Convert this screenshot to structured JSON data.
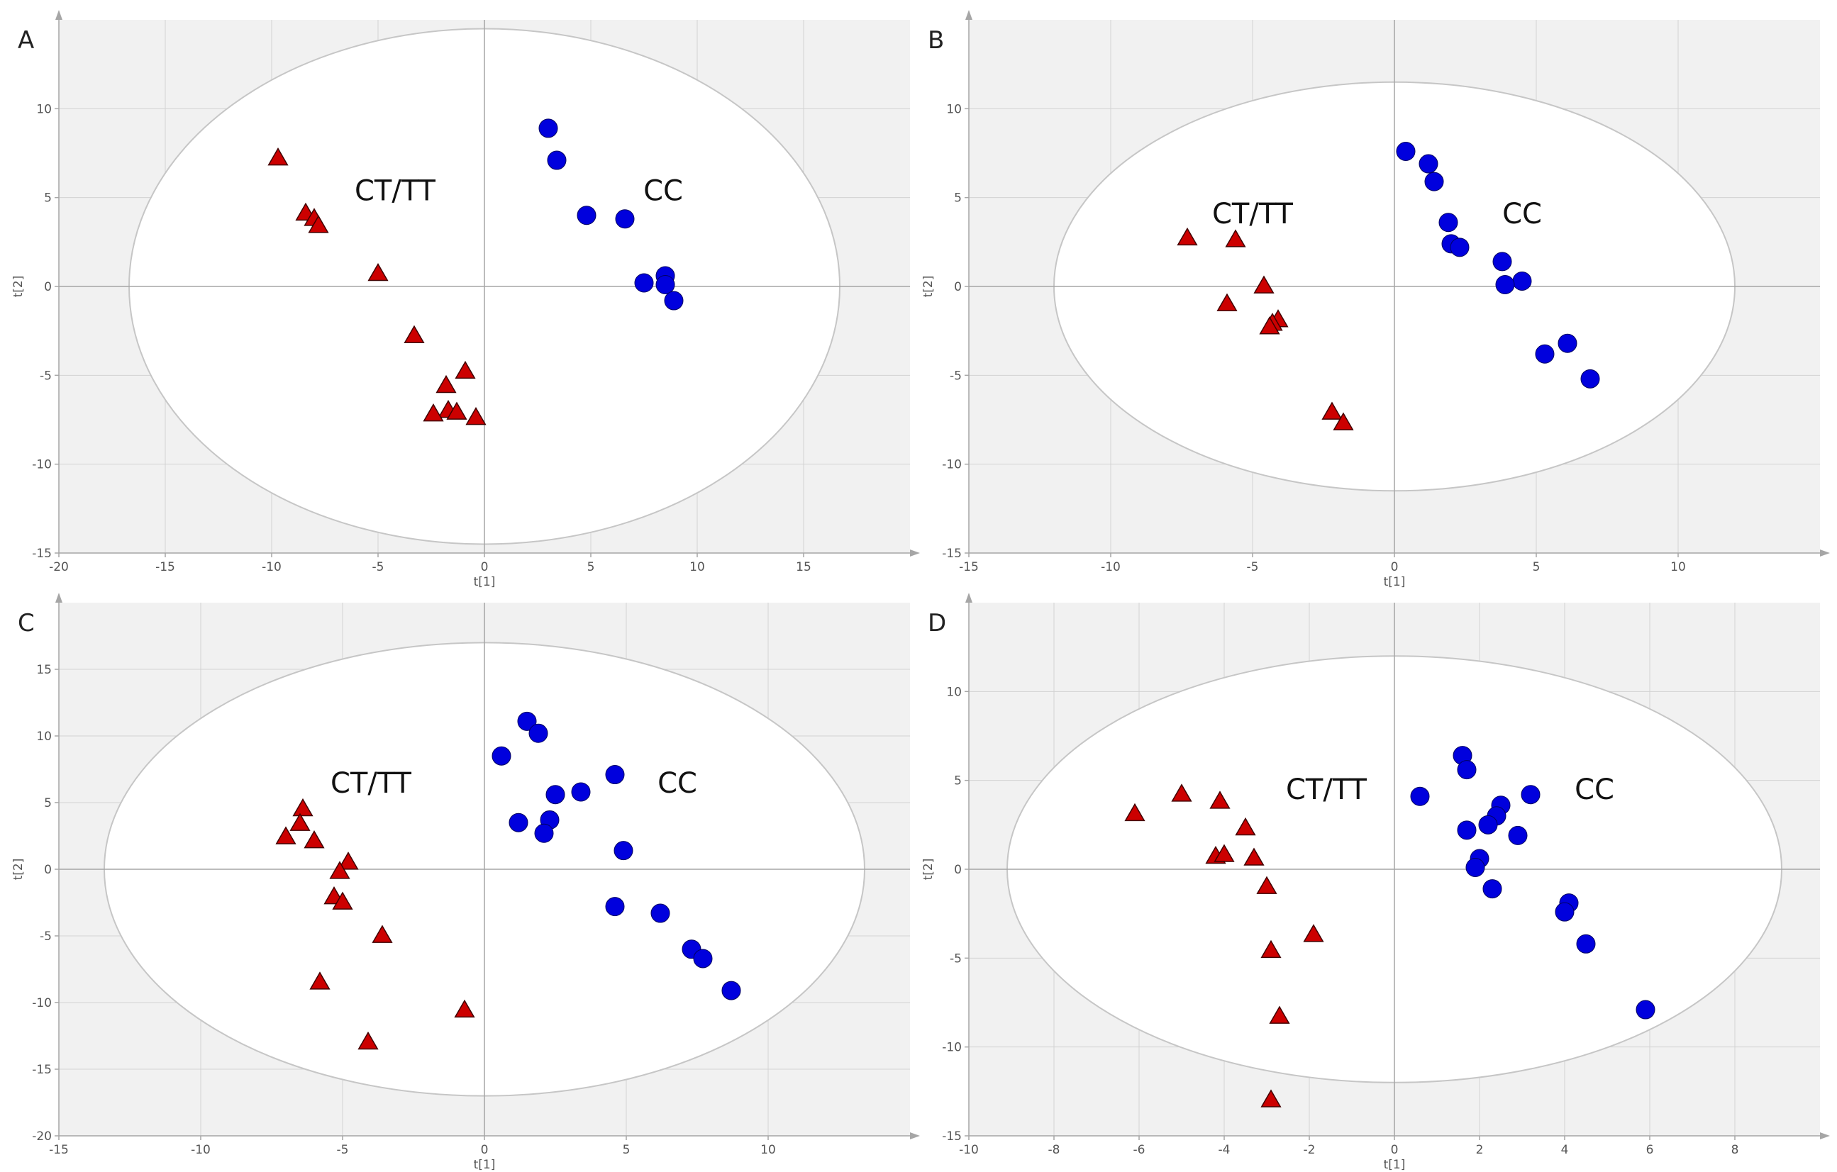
{
  "colors": {
    "background": "#f1f1f1",
    "grid": "#d2d2d2",
    "axis": "#a6a6a6",
    "ellipse_fill": "#ffffff",
    "ellipse_stroke": "#c6c6c6",
    "ct_tt": "#cc0000",
    "cc": "#0000dd"
  },
  "chart_data": [
    {
      "type": "scatter",
      "panel": "A",
      "xlabel": "t[1]",
      "ylabel": "t[2]",
      "xlim": [
        -20,
        20
      ],
      "ylim": [
        -15,
        15
      ],
      "xticks": [
        -20,
        -15,
        -10,
        -5,
        0,
        5,
        10,
        15
      ],
      "yticks": [
        -15,
        -10,
        -5,
        0,
        5,
        10
      ],
      "grid": true,
      "ellipse": {
        "cx": 0,
        "cy": 0,
        "rx": 16.7,
        "ry": 14.5
      },
      "labels": [
        {
          "text": "CT/TT",
          "x": -4.2,
          "y": 5.4
        },
        {
          "text": "CC",
          "x": 8.4,
          "y": 5.4
        }
      ],
      "series": [
        {
          "name": "CT/TT",
          "marker": "triangle",
          "color": "#cc0000",
          "points": [
            [
              -9.7,
              7.2
            ],
            [
              -8.4,
              4.1
            ],
            [
              -8.0,
              3.8
            ],
            [
              -7.8,
              3.4
            ],
            [
              -5.0,
              0.7
            ],
            [
              -3.3,
              -2.8
            ],
            [
              -0.9,
              -4.8
            ],
            [
              -1.8,
              -5.6
            ],
            [
              -1.7,
              -7.0
            ],
            [
              -2.4,
              -7.2
            ],
            [
              -1.3,
              -7.1
            ],
            [
              -0.4,
              -7.4
            ]
          ]
        },
        {
          "name": "CC",
          "marker": "circle",
          "color": "#0000dd",
          "points": [
            [
              3.0,
              8.9
            ],
            [
              3.4,
              7.1
            ],
            [
              4.8,
              4.0
            ],
            [
              6.6,
              3.8
            ],
            [
              7.5,
              0.2
            ],
            [
              8.5,
              0.6
            ],
            [
              8.5,
              0.1
            ],
            [
              8.9,
              -0.8
            ]
          ]
        }
      ]
    },
    {
      "type": "scatter",
      "panel": "B",
      "xlabel": "t[1]",
      "ylabel": "t[2]",
      "xlim": [
        -15,
        15
      ],
      "ylim": [
        -15,
        15
      ],
      "xticks": [
        -15,
        -10,
        -5,
        0,
        5,
        10
      ],
      "yticks": [
        -15,
        -10,
        -5,
        0,
        5,
        10
      ],
      "grid": true,
      "ellipse": {
        "cx": 0,
        "cy": 0,
        "rx": 12.0,
        "ry": 11.5
      },
      "labels": [
        {
          "text": "CT/TT",
          "x": -5.0,
          "y": 4.1
        },
        {
          "text": "CC",
          "x": 4.5,
          "y": 4.1
        }
      ],
      "series": [
        {
          "name": "CT/TT",
          "marker": "triangle",
          "color": "#cc0000",
          "points": [
            [
              -7.3,
              2.7
            ],
            [
              -5.6,
              2.6
            ],
            [
              -4.6,
              0.0
            ],
            [
              -5.9,
              -1.0
            ],
            [
              -4.1,
              -1.9
            ],
            [
              -4.3,
              -2.1
            ],
            [
              -4.4,
              -2.3
            ],
            [
              -2.2,
              -7.1
            ],
            [
              -1.8,
              -7.7
            ]
          ]
        },
        {
          "name": "CC",
          "marker": "circle",
          "color": "#0000dd",
          "points": [
            [
              0.4,
              7.6
            ],
            [
              1.2,
              6.9
            ],
            [
              1.4,
              5.9
            ],
            [
              1.9,
              3.6
            ],
            [
              2.0,
              2.4
            ],
            [
              2.3,
              2.2
            ],
            [
              3.8,
              1.4
            ],
            [
              4.5,
              0.3
            ],
            [
              3.9,
              0.1
            ],
            [
              6.1,
              -3.2
            ],
            [
              5.3,
              -3.8
            ],
            [
              6.9,
              -5.2
            ]
          ]
        }
      ]
    },
    {
      "type": "scatter",
      "panel": "C",
      "xlabel": "t[1]",
      "ylabel": "t[2]",
      "xlim": [
        -15,
        15
      ],
      "ylim": [
        -20,
        20
      ],
      "xticks": [
        -15,
        -10,
        -5,
        0,
        5,
        10
      ],
      "yticks": [
        -20,
        -15,
        -10,
        -5,
        0,
        5,
        10,
        15
      ],
      "grid": true,
      "ellipse": {
        "cx": 0,
        "cy": 0,
        "rx": 13.4,
        "ry": 17.0
      },
      "labels": [
        {
          "text": "CT/TT",
          "x": -4.0,
          "y": 6.5
        },
        {
          "text": "CC",
          "x": 6.8,
          "y": 6.5
        }
      ],
      "series": [
        {
          "name": "CT/TT",
          "marker": "triangle",
          "color": "#cc0000",
          "points": [
            [
              -6.4,
              4.5
            ],
            [
              -6.5,
              3.4
            ],
            [
              -7.0,
              2.4
            ],
            [
              -6.0,
              2.1
            ],
            [
              -4.8,
              0.5
            ],
            [
              -5.1,
              -0.2
            ],
            [
              -5.3,
              -2.1
            ],
            [
              -5.0,
              -2.5
            ],
            [
              -3.6,
              -5.0
            ],
            [
              -5.8,
              -8.5
            ],
            [
              -4.1,
              -13.0
            ],
            [
              -0.7,
              -10.6
            ]
          ]
        },
        {
          "name": "CC",
          "marker": "circle",
          "color": "#0000dd",
          "points": [
            [
              1.5,
              11.1
            ],
            [
              1.9,
              10.2
            ],
            [
              0.6,
              8.5
            ],
            [
              4.6,
              7.1
            ],
            [
              3.4,
              5.8
            ],
            [
              2.5,
              5.6
            ],
            [
              2.3,
              3.7
            ],
            [
              1.2,
              3.5
            ],
            [
              2.1,
              2.7
            ],
            [
              4.9,
              1.4
            ],
            [
              4.6,
              -2.8
            ],
            [
              6.2,
              -3.3
            ],
            [
              7.3,
              -6.0
            ],
            [
              7.7,
              -6.7
            ],
            [
              8.7,
              -9.1
            ]
          ]
        }
      ]
    },
    {
      "type": "scatter",
      "panel": "D",
      "xlabel": "t[1]",
      "ylabel": "t[2]",
      "xlim": [
        -10,
        10
      ],
      "ylim": [
        -15,
        15
      ],
      "xticks": [
        -10,
        -8,
        -6,
        -4,
        -2,
        0,
        2,
        4,
        6,
        8
      ],
      "yticks": [
        -15,
        -10,
        -5,
        0,
        5,
        10
      ],
      "grid": true,
      "ellipse": {
        "cx": 0,
        "cy": 0,
        "rx": 9.1,
        "ry": 12.0
      },
      "labels": [
        {
          "text": "CT/TT",
          "x": -1.6,
          "y": 4.5
        },
        {
          "text": "CC",
          "x": 4.7,
          "y": 4.5
        }
      ],
      "series": [
        {
          "name": "CT/TT",
          "marker": "triangle",
          "color": "#cc0000",
          "points": [
            [
              -6.1,
              3.1
            ],
            [
              -5.0,
              4.2
            ],
            [
              -4.1,
              3.8
            ],
            [
              -3.5,
              2.3
            ],
            [
              -4.2,
              0.7
            ],
            [
              -4.0,
              0.8
            ],
            [
              -3.3,
              0.6
            ],
            [
              -3.0,
              -1.0
            ],
            [
              -2.9,
              -4.6
            ],
            [
              -1.9,
              -3.7
            ],
            [
              -2.7,
              -8.3
            ],
            [
              -2.9,
              -13.0
            ]
          ]
        },
        {
          "name": "CC",
          "marker": "circle",
          "color": "#0000dd",
          "points": [
            [
              1.6,
              6.4
            ],
            [
              1.7,
              5.6
            ],
            [
              0.6,
              4.1
            ],
            [
              3.2,
              4.2
            ],
            [
              2.5,
              3.6
            ],
            [
              2.4,
              3.0
            ],
            [
              2.2,
              2.5
            ],
            [
              1.7,
              2.2
            ],
            [
              2.9,
              1.9
            ],
            [
              2.0,
              0.6
            ],
            [
              1.9,
              0.1
            ],
            [
              2.3,
              -1.1
            ],
            [
              4.1,
              -1.9
            ],
            [
              4.0,
              -2.4
            ],
            [
              4.5,
              -4.2
            ],
            [
              5.9,
              -7.9
            ]
          ]
        }
      ]
    }
  ]
}
